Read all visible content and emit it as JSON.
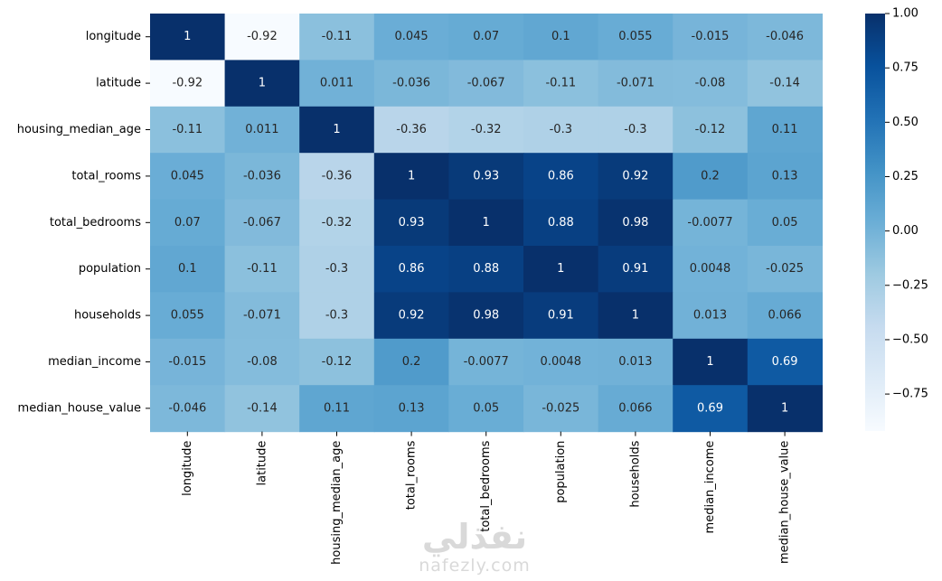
{
  "chart_data": {
    "type": "heatmap",
    "title": "",
    "xlabel": "",
    "ylabel": "",
    "rows": [
      "longitude",
      "latitude",
      "housing_median_age",
      "total_rooms",
      "total_bedrooms",
      "population",
      "households",
      "median_income",
      "median_house_value"
    ],
    "cols": [
      "longitude",
      "latitude",
      "housing_median_age",
      "total_rooms",
      "total_bedrooms",
      "population",
      "households",
      "median_income",
      "median_house_value"
    ],
    "values": [
      [
        1,
        -0.92,
        -0.11,
        0.045,
        0.07,
        0.1,
        0.055,
        -0.015,
        -0.046
      ],
      [
        -0.92,
        1,
        0.011,
        -0.036,
        -0.067,
        -0.11,
        -0.071,
        -0.08,
        -0.14
      ],
      [
        -0.11,
        0.011,
        1,
        -0.36,
        -0.32,
        -0.3,
        -0.3,
        -0.12,
        0.11
      ],
      [
        0.045,
        -0.036,
        -0.36,
        1,
        0.93,
        0.86,
        0.92,
        0.2,
        0.13
      ],
      [
        0.07,
        -0.067,
        -0.32,
        0.93,
        1,
        0.88,
        0.98,
        -0.0077,
        0.05
      ],
      [
        0.1,
        -0.11,
        -0.3,
        0.86,
        0.88,
        1,
        0.91,
        0.0048,
        -0.025
      ],
      [
        0.055,
        -0.071,
        -0.3,
        0.92,
        0.98,
        0.91,
        1,
        0.013,
        0.066
      ],
      [
        -0.015,
        -0.08,
        -0.12,
        0.2,
        -0.0077,
        0.0048,
        0.013,
        1,
        0.69
      ],
      [
        -0.046,
        -0.14,
        0.11,
        0.13,
        0.05,
        -0.025,
        0.066,
        0.69,
        1
      ]
    ],
    "labels": [
      [
        "1",
        "-0.92",
        "-0.11",
        "0.045",
        "0.07",
        "0.1",
        "0.055",
        "-0.015",
        "-0.046"
      ],
      [
        "-0.92",
        "1",
        "0.011",
        "-0.036",
        "-0.067",
        "-0.11",
        "-0.071",
        "-0.08",
        "-0.14"
      ],
      [
        "-0.11",
        "0.011",
        "1",
        "-0.36",
        "-0.32",
        "-0.3",
        "-0.3",
        "-0.12",
        "0.11"
      ],
      [
        "0.045",
        "-0.036",
        "-0.36",
        "1",
        "0.93",
        "0.86",
        "0.92",
        "0.2",
        "0.13"
      ],
      [
        "0.07",
        "-0.067",
        "-0.32",
        "0.93",
        "1",
        "0.88",
        "0.98",
        "-0.0077",
        "0.05"
      ],
      [
        "0.1",
        "-0.11",
        "-0.3",
        "0.86",
        "0.88",
        "1",
        "0.91",
        "0.0048",
        "-0.025"
      ],
      [
        "0.055",
        "-0.071",
        "-0.3",
        "0.92",
        "0.98",
        "0.91",
        "1",
        "0.013",
        "0.066"
      ],
      [
        "-0.015",
        "-0.08",
        "-0.12",
        "0.2",
        "-0.0077",
        "0.0048",
        "0.013",
        "1",
        "0.69"
      ],
      [
        "-0.046",
        "-0.14",
        "0.11",
        "0.13",
        "0.05",
        "-0.025",
        "0.066",
        "0.69",
        "1"
      ]
    ],
    "colormap": "Blues",
    "color_range": [
      -0.92,
      1
    ],
    "colorbar_ticks": [
      1.0,
      0.75,
      0.5,
      0.25,
      0.0,
      -0.25,
      -0.5,
      -0.75
    ],
    "colorbar_tick_labels": [
      "1.00",
      "0.75",
      "0.50",
      "0.25",
      "0.00",
      "−0.25",
      "−0.50",
      "−0.75"
    ],
    "legend_placement": "right"
  },
  "watermark": {
    "arabic": "نفذلي",
    "latin": "nafezly.com"
  }
}
